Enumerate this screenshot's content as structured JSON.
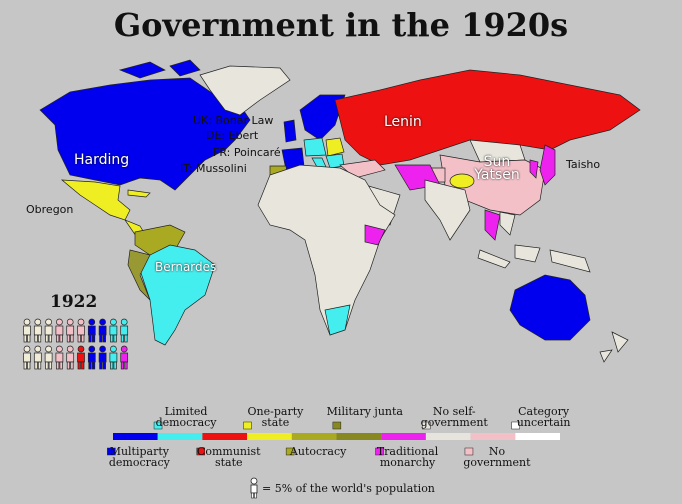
{
  "title": "Government in the 1920s",
  "leaders": [
    "UK: Bonar Law",
    "DE: Ebert",
    "FR: Poincaré",
    "IT: Mussolini",
    "Harding",
    "Lenin",
    "Sun Yatsen",
    "Taisho",
    "Obregon",
    "Bernardes"
  ],
  "year": "1922",
  "population": {
    "figures": [
      "#f0ecd8",
      "#f0ecd8",
      "#f0ecd8",
      "#f4c0c8",
      "#f4c0c8",
      "#f4c0c8",
      "#0000ee",
      "#0000ee",
      "#44eeee",
      "#44eeee",
      "#f0ecd8",
      "#f0ecd8",
      "#f0ecd8",
      "#f4c0c8",
      "#f4c0c8",
      "#ee1111",
      "#0000ee",
      "#0000ee",
      "#44eeee",
      "#ee22ee"
    ]
  },
  "legend": {
    "items": [
      {
        "label": "Multiparty democracy",
        "color": "#0000ee"
      },
      {
        "label": "Limited democracy",
        "color": "#44eeee"
      },
      {
        "label": "Communist state",
        "color": "#ee1111"
      },
      {
        "label": "One-party state",
        "color": "#eeee22"
      },
      {
        "label": "Autocracy",
        "color": "#aaaa22"
      },
      {
        "label": "Military junta",
        "color": "#888822"
      },
      {
        "label": "Traditional monarchy",
        "color": "#ee22ee"
      },
      {
        "label": "No self-government",
        "color": "#e6e4dc"
      },
      {
        "label": "No government",
        "color": "#f4c0c8"
      },
      {
        "label": "Category uncertain",
        "color": "#ffffff"
      }
    ],
    "footnote": "= 5% of the world's population"
  }
}
